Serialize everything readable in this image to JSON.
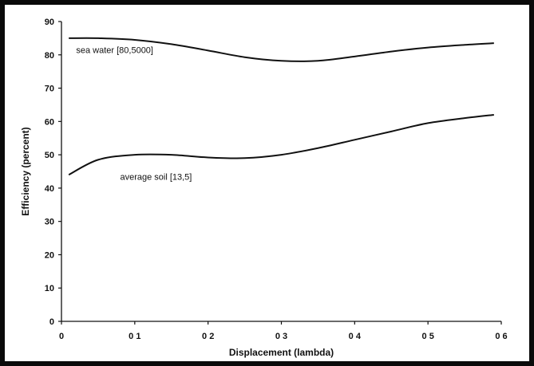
{
  "chart_data": {
    "type": "line",
    "title": "",
    "xlabel": "Displacement (lambda)",
    "ylabel": "Efficiency (percent)",
    "xlim": [
      0,
      0.6
    ],
    "ylim": [
      0,
      90
    ],
    "x_ticks": [
      0,
      0.1,
      0.2,
      0.3,
      0.4,
      0.5,
      0.6
    ],
    "x_tick_labels": [
      "0",
      "0 1",
      "0 2",
      "0 3",
      "0 4",
      "0 5",
      "0 6"
    ],
    "y_ticks": [
      0,
      10,
      20,
      30,
      40,
      50,
      60,
      70,
      80,
      90
    ],
    "y_tick_labels": [
      "0",
      "10",
      "20",
      "30",
      "40",
      "50",
      "60",
      "70",
      "80",
      "90"
    ],
    "grid": false,
    "legend": "none",
    "series": [
      {
        "name": "sea water [80,5000]",
        "x": [
          0.01,
          0.05,
          0.1,
          0.15,
          0.2,
          0.25,
          0.3,
          0.35,
          0.4,
          0.45,
          0.5,
          0.55,
          0.59
        ],
        "values": [
          85,
          85,
          84.5,
          83.2,
          81.3,
          79.3,
          78.2,
          78.2,
          79.5,
          81,
          82.2,
          83,
          83.5
        ]
      },
      {
        "name": "average soil [13,5]",
        "x": [
          0.01,
          0.05,
          0.1,
          0.15,
          0.2,
          0.25,
          0.3,
          0.35,
          0.4,
          0.45,
          0.5,
          0.55,
          0.59
        ],
        "values": [
          44,
          48.5,
          50,
          50,
          49.2,
          49,
          50,
          52,
          54.5,
          57,
          59.5,
          61,
          62
        ]
      }
    ],
    "annotations": [
      {
        "text": "sea water [80,5000]",
        "x": 0.02,
        "y": 80.5
      },
      {
        "text": "average soil [13,5]",
        "x": 0.08,
        "y": 42.5
      }
    ],
    "colors": {
      "line": "#111111",
      "axis": "#111111",
      "frame": "#0a0a0a"
    }
  }
}
